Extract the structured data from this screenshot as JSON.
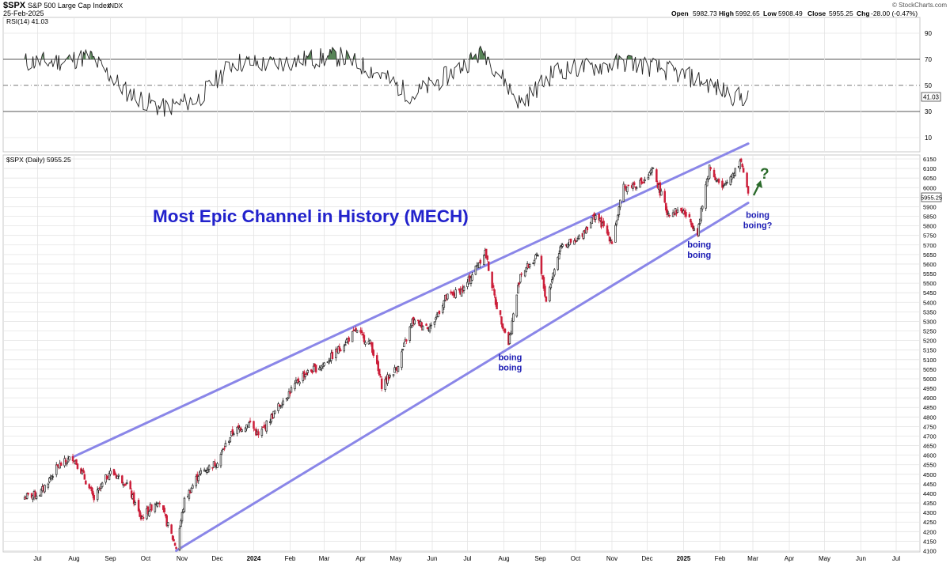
{
  "header": {
    "symbol": "$SPX",
    "description": "S&P 500 Large Cap Index",
    "exchange": "INDX",
    "date": "25-Feb-2025",
    "open_label": "Open",
    "open": "5982.73",
    "high_label": "High",
    "high": "5992.65",
    "low_label": "Low",
    "low": "5908.49",
    "close_label": "Close",
    "close": "5955.25",
    "chg_label": "Chg",
    "chg": "-28.00 (-0.47%)",
    "brand": "© StockCharts.com"
  },
  "colors": {
    "background": "#ffffff",
    "grid": "#e4e4e4",
    "channel": "#8a86e8",
    "title": "#2222cc",
    "annotation": "#1d1db5",
    "up_candle": "#222222",
    "down_candle": "#cc1f3a",
    "rsi_line": "#222222",
    "rsi_fill": "#3a6e3a",
    "arrow": "#2a6a2a"
  },
  "chart_data": [
    {
      "type": "line",
      "name": "rsi_panel",
      "label": "RSI(14) 41.03",
      "y_ticks": [
        "90",
        "70",
        "50",
        "30",
        "10"
      ],
      "ylim": [
        0,
        100
      ],
      "reference_lines": [
        70,
        50,
        30
      ],
      "last_value": "41.03",
      "x": [
        "2023-07",
        "2023-08",
        "2023-09",
        "2023-10",
        "2023-11",
        "2023-12",
        "2024-01",
        "2024-02",
        "2024-03",
        "2024-04",
        "2024-05",
        "2024-06",
        "2024-07",
        "2024-08",
        "2024-09",
        "2024-10",
        "2024-11",
        "2024-12",
        "2025-01",
        "2025-02"
      ],
      "values": [
        68,
        72,
        45,
        32,
        40,
        68,
        66,
        70,
        72,
        60,
        42,
        58,
        76,
        36,
        62,
        64,
        68,
        62,
        54,
        41
      ]
    },
    {
      "type": "candlestick",
      "name": "price_panel",
      "label": "$SPX (Daily) 5955.25",
      "title": "Most Epic Channel in History (MECH)",
      "last_value": "5955.25",
      "ylim": [
        4080,
        6180
      ],
      "y_ticks": [
        "6150",
        "6100",
        "6050",
        "6000",
        "5950",
        "5900",
        "5850",
        "5800",
        "5750",
        "5700",
        "5650",
        "5600",
        "5550",
        "5500",
        "5450",
        "5400",
        "5350",
        "5300",
        "5250",
        "5200",
        "5150",
        "5100",
        "5050",
        "5000",
        "4950",
        "4900",
        "4850",
        "4800",
        "4750",
        "4700",
        "4650",
        "4600",
        "4550",
        "4500",
        "4450",
        "4400",
        "4350",
        "4300",
        "4250",
        "4200",
        "4150",
        "4100"
      ],
      "x_labels": [
        "Jul",
        "Aug",
        "Sep",
        "Oct",
        "Nov",
        "Dec",
        "2024",
        "Feb",
        "Mar",
        "Apr",
        "May",
        "Jun",
        "Jul",
        "Aug",
        "Sep",
        "Oct",
        "Nov",
        "Dec",
        "2025",
        "Feb",
        "Mar",
        "Apr",
        "May",
        "Jun",
        "Jul"
      ],
      "x_label_dates": [
        "2023-07-01",
        "2023-08-01",
        "2023-09-01",
        "2023-10-01",
        "2023-11-01",
        "2023-12-01",
        "2024-01-01",
        "2024-02-01",
        "2024-03-01",
        "2024-04-01",
        "2024-05-01",
        "2024-06-01",
        "2024-07-01",
        "2024-08-01",
        "2024-09-01",
        "2024-10-01",
        "2024-11-01",
        "2024-12-01",
        "2025-01-01",
        "2025-02-01",
        "2025-03-01",
        "2025-04-01",
        "2025-05-01",
        "2025-06-01",
        "2025-07-01"
      ],
      "close_path": [
        [
          "2023-06-20",
          4380
        ],
        [
          "2023-07-03",
          4400
        ],
        [
          "2023-07-18",
          4540
        ],
        [
          "2023-07-31",
          4590
        ],
        [
          "2023-08-07",
          4520
        ],
        [
          "2023-08-18",
          4370
        ],
        [
          "2023-08-31",
          4510
        ],
        [
          "2023-09-05",
          4500
        ],
        [
          "2023-09-15",
          4450
        ],
        [
          "2023-09-27",
          4270
        ],
        [
          "2023-10-12",
          4370
        ],
        [
          "2023-10-20",
          4230
        ],
        [
          "2023-10-27",
          4117
        ],
        [
          "2023-11-03",
          4360
        ],
        [
          "2023-11-15",
          4500
        ],
        [
          "2023-11-30",
          4560
        ],
        [
          "2023-12-14",
          4720
        ],
        [
          "2023-12-29",
          4770
        ],
        [
          "2024-01-05",
          4700
        ],
        [
          "2024-01-25",
          4880
        ],
        [
          "2024-02-12",
          5020
        ],
        [
          "2024-02-28",
          5070
        ],
        [
          "2024-03-08",
          5120
        ],
        [
          "2024-03-28",
          5250
        ],
        [
          "2024-04-10",
          5180
        ],
        [
          "2024-04-19",
          4967
        ],
        [
          "2024-05-02",
          5060
        ],
        [
          "2024-05-15",
          5300
        ],
        [
          "2024-05-31",
          5270
        ],
        [
          "2024-06-12",
          5420
        ],
        [
          "2024-06-28",
          5470
        ],
        [
          "2024-07-16",
          5667
        ],
        [
          "2024-07-25",
          5400
        ],
        [
          "2024-08-05",
          5186
        ],
        [
          "2024-08-15",
          5550
        ],
        [
          "2024-08-30",
          5640
        ],
        [
          "2024-09-06",
          5410
        ],
        [
          "2024-09-19",
          5710
        ],
        [
          "2024-10-01",
          5710
        ],
        [
          "2024-10-18",
          5860
        ],
        [
          "2024-11-01",
          5720
        ],
        [
          "2024-11-11",
          6000
        ],
        [
          "2024-11-29",
          6030
        ],
        [
          "2024-12-06",
          6090
        ],
        [
          "2024-12-18",
          5870
        ],
        [
          "2024-12-31",
          5880
        ],
        [
          "2025-01-13",
          5770
        ],
        [
          "2025-01-23",
          6110
        ],
        [
          "2025-02-03",
          5990
        ],
        [
          "2025-02-19",
          6144
        ],
        [
          "2025-02-25",
          5955
        ]
      ],
      "channel": {
        "upper": [
          [
            "2023-07-31",
            4590
          ],
          [
            "2025-02-25",
            6230
          ]
        ],
        "lower": [
          [
            "2023-10-27",
            4100
          ],
          [
            "2025-02-25",
            5920
          ]
        ]
      },
      "annotations": [
        {
          "lines": [
            "boing",
            "boing"
          ],
          "date": "2024-08-05",
          "price": 5180
        },
        {
          "lines": [
            "boing",
            "boing"
          ],
          "date": "2025-01-13",
          "price": 5770
        },
        {
          "lines": [
            "boing",
            "boing?"
          ],
          "date": "2025-02-25",
          "price": 5925
        }
      ],
      "question_mark": "?"
    }
  ]
}
